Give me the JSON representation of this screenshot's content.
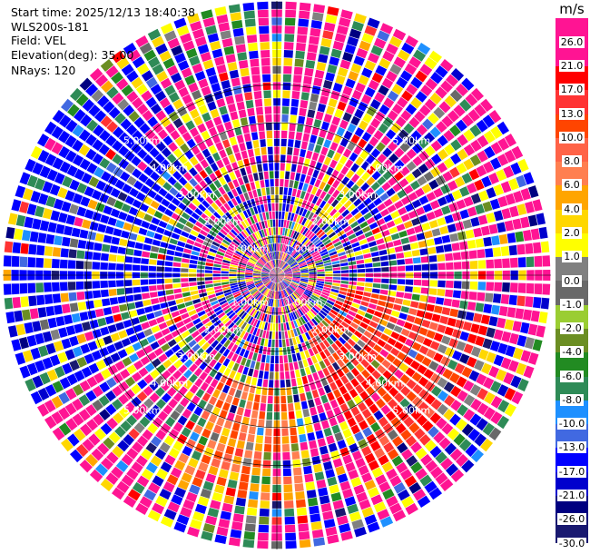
{
  "info": {
    "start_time": "Start time: 2025/12/13 18:40:38",
    "instrument": "WLS200s-181",
    "field": "Field: VEL",
    "elevation": "Elevation(deg): 35.00",
    "nrays": "NRays: 120"
  },
  "chart_data": {
    "type": "heatmap",
    "projection": "polar-ppi",
    "field": "VEL",
    "units": "m/s",
    "rays": 120,
    "ring_labels": [
      "1.00km",
      "2.00km",
      "3.00km",
      "4.00km",
      "5.00km"
    ],
    "max_range_km": 7.2,
    "colorbar": {
      "unit_label": "m/s",
      "boundaries": [
        -30.0,
        -26.0,
        -21.0,
        -17.0,
        -13.0,
        -10.0,
        -8.0,
        -6.0,
        -4.0,
        -2.0,
        -1.0,
        0.0,
        1.0,
        2.0,
        4.0,
        6.0,
        8.0,
        10.0,
        13.0,
        17.0,
        21.0,
        26.0
      ],
      "boundary_labels": [
        "-30.0",
        "-26.0",
        "-21.0",
        "-17.0",
        "-13.0",
        "-10.0",
        "-8.0",
        "-6.0",
        "-4.0",
        "-2.0",
        "-1.0",
        "0.0",
        "1.0",
        "2.0",
        "4.0",
        "6.0",
        "8.0",
        "10.0",
        "13.0",
        "17.0",
        "21.0",
        "26.0"
      ],
      "colors": [
        "#191970",
        "#000080",
        "#0000cd",
        "#0000ff",
        "#4169e1",
        "#1e90ff",
        "#2e8b57",
        "#228b22",
        "#6b8e23",
        "#9acd32",
        "#696969",
        "#808080",
        "#ffff00",
        "#ffd700",
        "#ffa500",
        "#ff7f50",
        "#ff6347",
        "#ff4500",
        "#ff3333",
        "#ff0000",
        "#ff1493",
        "#ff1493"
      ]
    }
  }
}
